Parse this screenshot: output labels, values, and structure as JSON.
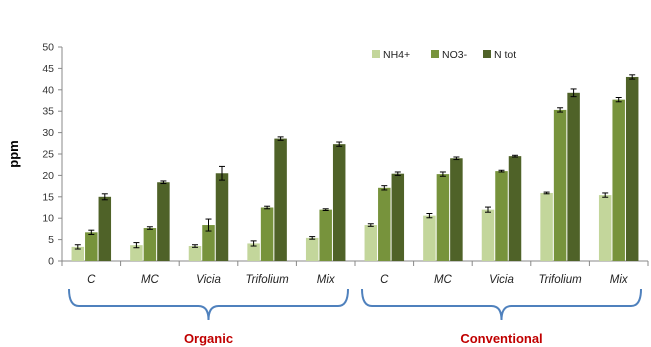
{
  "chart_data": {
    "type": "bar",
    "ylabel": "ppm",
    "ylim": [
      0,
      50
    ],
    "yticks": [
      "0",
      "5",
      "10",
      "15",
      "20",
      "25",
      "30",
      "35",
      "40",
      "45",
      "50"
    ],
    "grid": false,
    "legend_position": "top-right",
    "categories": [
      "C",
      "MC",
      "Vicia",
      "Trifolium",
      "Mix",
      "C",
      "MC",
      "Vicia",
      "Trifolium",
      "Mix"
    ],
    "groups": [
      {
        "label": "Organic",
        "start": 0,
        "end": 4
      },
      {
        "label": "Conventional",
        "start": 5,
        "end": 9
      }
    ],
    "series": [
      {
        "name": "NH4+",
        "color": "#c3d69b",
        "values": [
          3.3,
          3.7,
          3.5,
          4.1,
          5.4,
          8.4,
          10.6,
          12.0,
          15.9,
          15.4
        ],
        "errors": [
          0.5,
          0.6,
          0.3,
          0.6,
          0.3,
          0.3,
          0.5,
          0.6,
          0.2,
          0.5
        ]
      },
      {
        "name": "NO3-",
        "color": "#77933c",
        "values": [
          6.7,
          7.7,
          8.4,
          12.5,
          12.0,
          17.1,
          20.3,
          21.0,
          35.3,
          37.7
        ],
        "errors": [
          0.5,
          0.3,
          1.4,
          0.3,
          0.2,
          0.5,
          0.5,
          0.2,
          0.5,
          0.5
        ]
      },
      {
        "name": "N tot",
        "color": "#4f6228",
        "values": [
          15.0,
          18.4,
          20.5,
          28.6,
          27.3,
          20.4,
          24.0,
          24.5,
          39.3,
          43.0
        ],
        "errors": [
          0.7,
          0.3,
          1.6,
          0.4,
          0.5,
          0.4,
          0.3,
          0.2,
          0.9,
          0.5
        ]
      }
    ],
    "colors": {
      "axis": "#888888",
      "brace": "#4f81bd",
      "group_label": "#c00000"
    }
  }
}
